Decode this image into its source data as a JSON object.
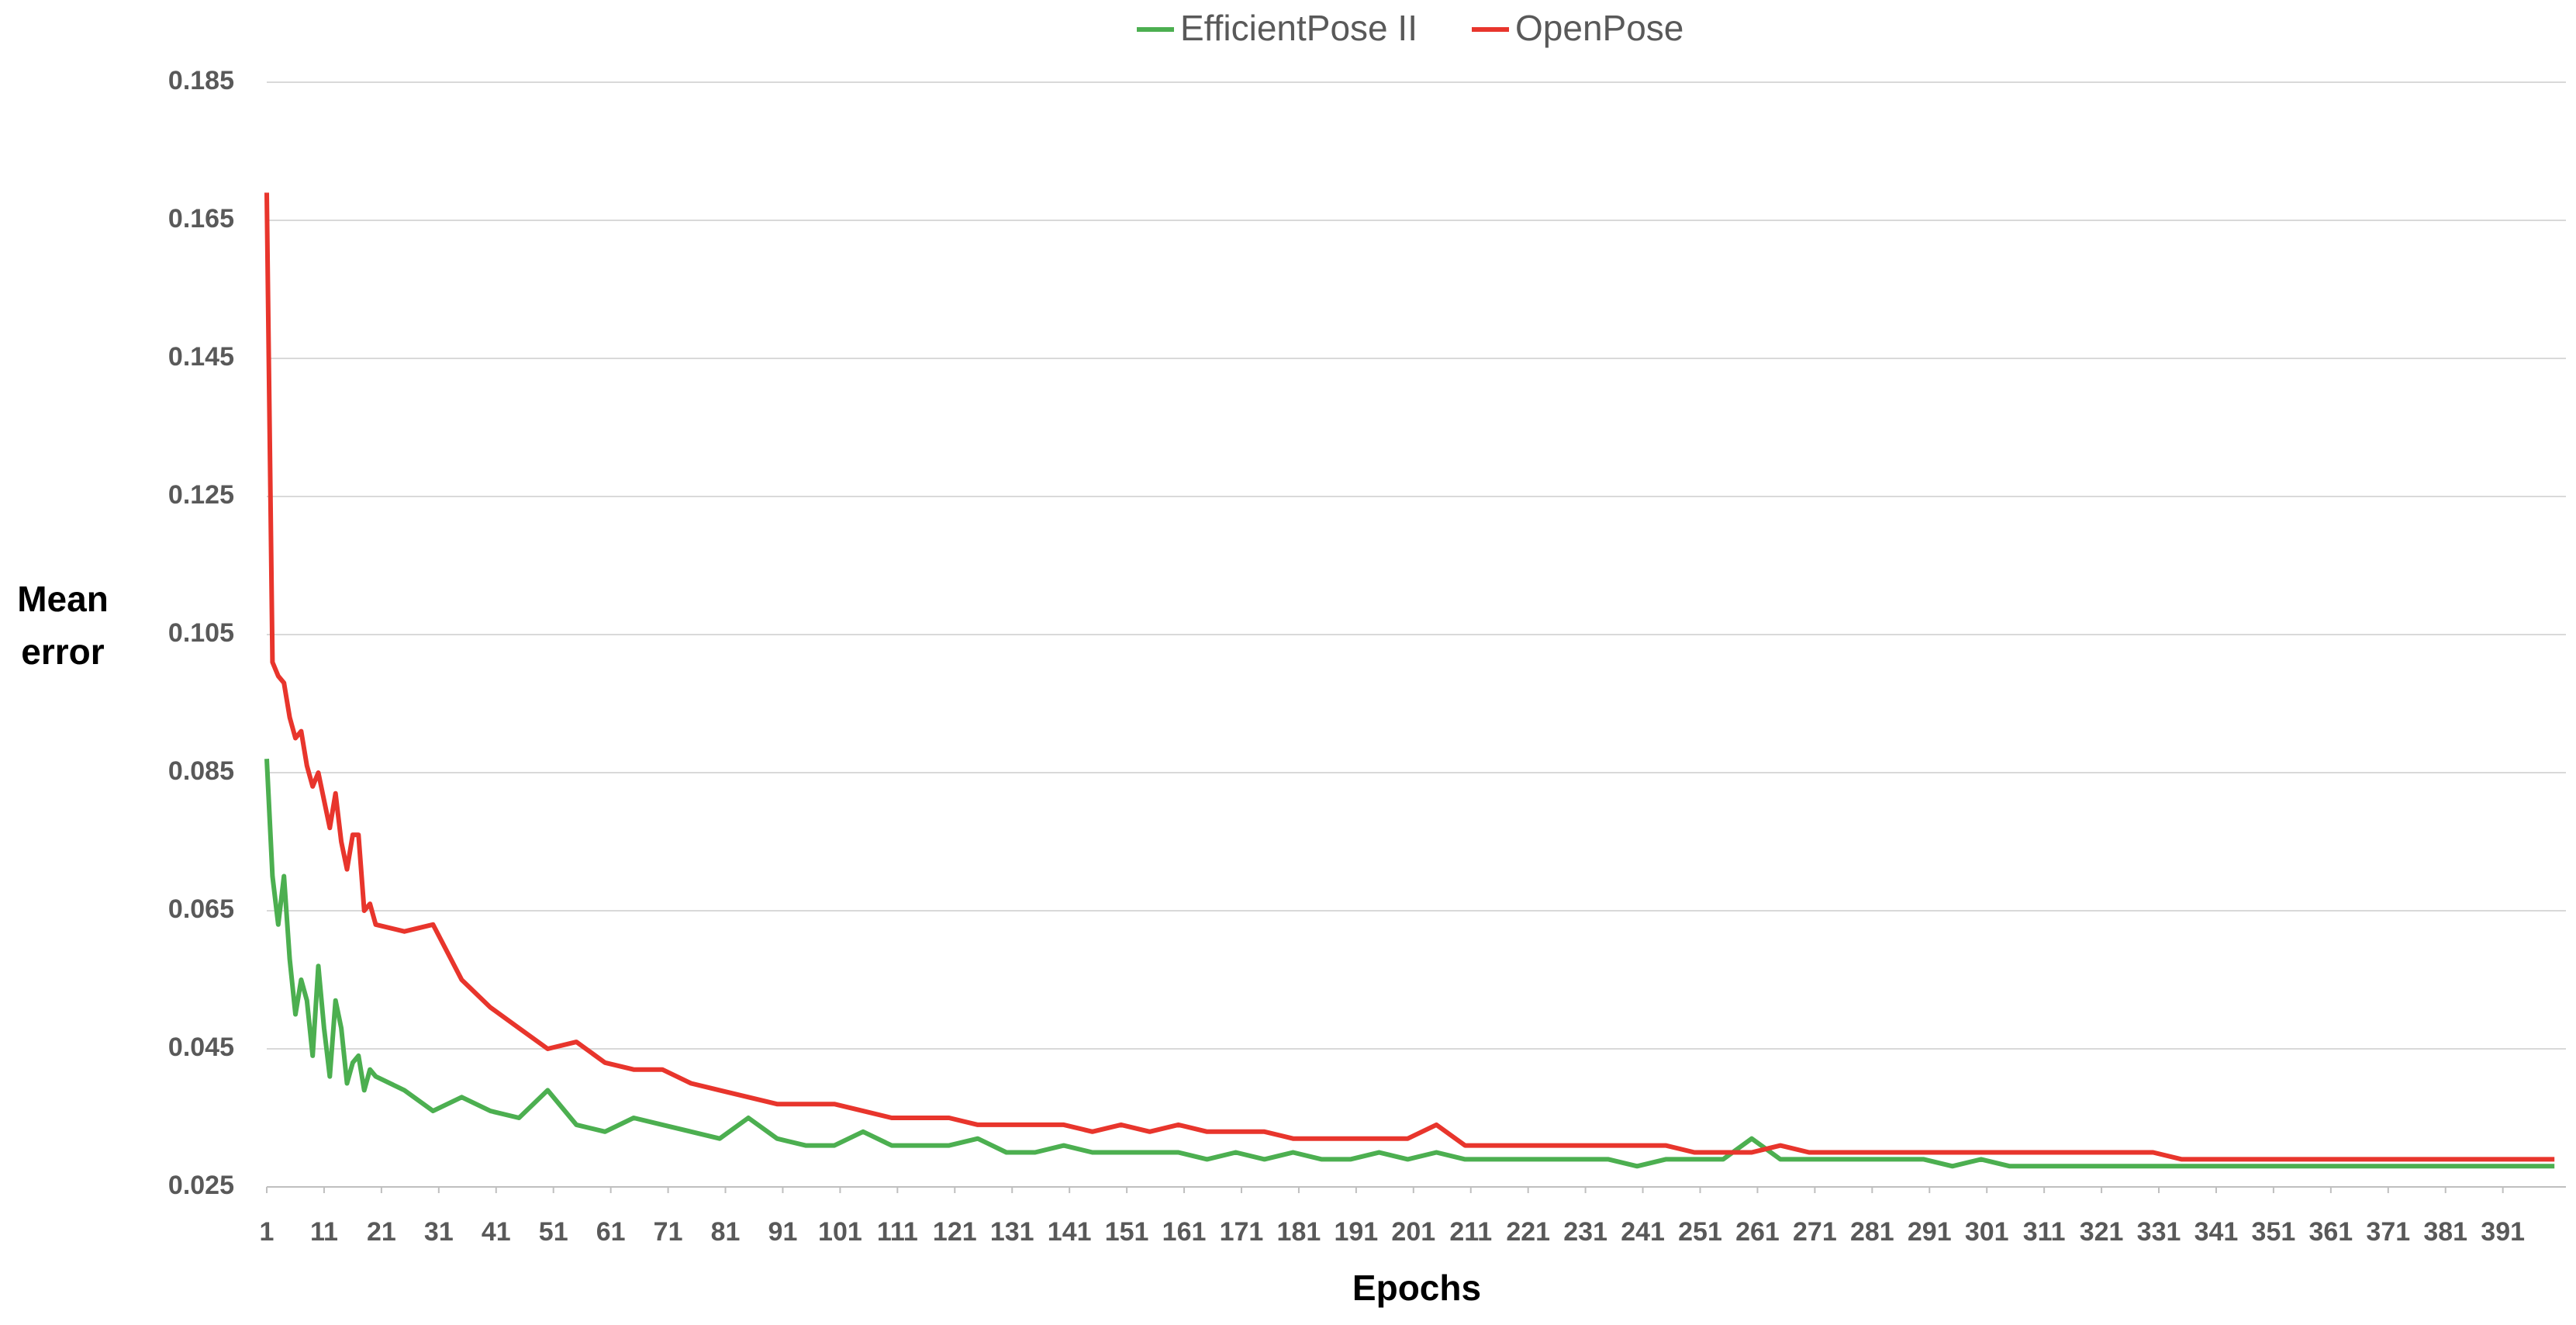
{
  "chart_data": {
    "type": "line",
    "legend": "top",
    "x_label": "Epochs",
    "y_label": [
      "Mean",
      "error"
    ],
    "grid": true,
    "xlim": [
      1,
      402
    ],
    "ylim": [
      0.025,
      0.185
    ],
    "yticks": [
      0.025,
      0.045,
      0.065,
      0.085,
      0.105,
      0.125,
      0.145,
      0.165,
      0.185
    ],
    "xticks": [
      1,
      11,
      21,
      31,
      41,
      51,
      61,
      71,
      81,
      91,
      101,
      111,
      121,
      131,
      141,
      151,
      161,
      171,
      181,
      191,
      201,
      211,
      221,
      231,
      241,
      251,
      261,
      271,
      281,
      291,
      301,
      311,
      321,
      331,
      341,
      351,
      361,
      371,
      381,
      391
    ],
    "x": [
      1,
      2,
      3,
      4,
      5,
      6,
      7,
      8,
      9,
      10,
      11,
      12,
      13,
      14,
      15,
      16,
      17,
      18,
      19,
      20,
      25,
      30,
      35,
      40,
      45,
      50,
      55,
      60,
      65,
      70,
      75,
      80,
      85,
      90,
      95,
      100,
      105,
      110,
      115,
      120,
      125,
      130,
      135,
      140,
      145,
      150,
      155,
      160,
      165,
      170,
      175,
      180,
      185,
      190,
      195,
      200,
      205,
      210,
      215,
      220,
      225,
      230,
      235,
      240,
      245,
      250,
      255,
      260,
      265,
      270,
      275,
      280,
      285,
      290,
      295,
      300,
      305,
      310,
      315,
      320,
      325,
      330,
      335,
      340,
      345,
      350,
      355,
      360,
      365,
      370,
      375,
      380,
      385,
      390,
      395,
      400
    ],
    "series": [
      {
        "name": "EfficientPose II",
        "color": "#4caf50",
        "values": [
          0.087,
          0.07,
          0.063,
          0.07,
          0.058,
          0.05,
          0.055,
          0.052,
          0.044,
          0.057,
          0.048,
          0.041,
          0.052,
          0.048,
          0.04,
          0.043,
          0.044,
          0.039,
          0.042,
          0.041,
          0.039,
          0.036,
          0.038,
          0.036,
          0.035,
          0.039,
          0.034,
          0.033,
          0.035,
          0.034,
          0.033,
          0.032,
          0.035,
          0.032,
          0.031,
          0.031,
          0.033,
          0.031,
          0.031,
          0.031,
          0.032,
          0.03,
          0.03,
          0.031,
          0.03,
          0.03,
          0.03,
          0.03,
          0.029,
          0.03,
          0.029,
          0.03,
          0.029,
          0.029,
          0.03,
          0.029,
          0.03,
          0.029,
          0.029,
          0.029,
          0.029,
          0.029,
          0.029,
          0.028,
          0.029,
          0.029,
          0.029,
          0.032,
          0.029,
          0.029,
          0.029,
          0.029,
          0.029,
          0.029,
          0.028,
          0.029,
          0.028,
          0.028,
          0.028,
          0.028,
          0.028,
          0.028,
          0.028,
          0.028,
          0.028,
          0.028,
          0.028,
          0.028,
          0.028,
          0.028,
          0.028,
          0.028,
          0.028,
          0.028,
          0.028,
          0.028
        ]
      },
      {
        "name": "OpenPose",
        "color": "#e8352c",
        "values": [
          0.169,
          0.101,
          0.099,
          0.098,
          0.093,
          0.09,
          0.091,
          0.086,
          0.083,
          0.085,
          0.081,
          0.077,
          0.082,
          0.075,
          0.071,
          0.076,
          0.076,
          0.065,
          0.066,
          0.063,
          0.062,
          0.063,
          0.055,
          0.051,
          0.048,
          0.045,
          0.046,
          0.043,
          0.042,
          0.042,
          0.04,
          0.039,
          0.038,
          0.037,
          0.037,
          0.037,
          0.036,
          0.035,
          0.035,
          0.035,
          0.034,
          0.034,
          0.034,
          0.034,
          0.033,
          0.034,
          0.033,
          0.034,
          0.033,
          0.033,
          0.033,
          0.032,
          0.032,
          0.032,
          0.032,
          0.032,
          0.034,
          0.031,
          0.031,
          0.031,
          0.031,
          0.031,
          0.031,
          0.031,
          0.031,
          0.03,
          0.03,
          0.03,
          0.031,
          0.03,
          0.03,
          0.03,
          0.03,
          0.03,
          0.03,
          0.03,
          0.03,
          0.03,
          0.03,
          0.03,
          0.03,
          0.03,
          0.029,
          0.029,
          0.029,
          0.029,
          0.029,
          0.029,
          0.029,
          0.029,
          0.029,
          0.029,
          0.029,
          0.029,
          0.029,
          0.029
        ]
      }
    ]
  }
}
